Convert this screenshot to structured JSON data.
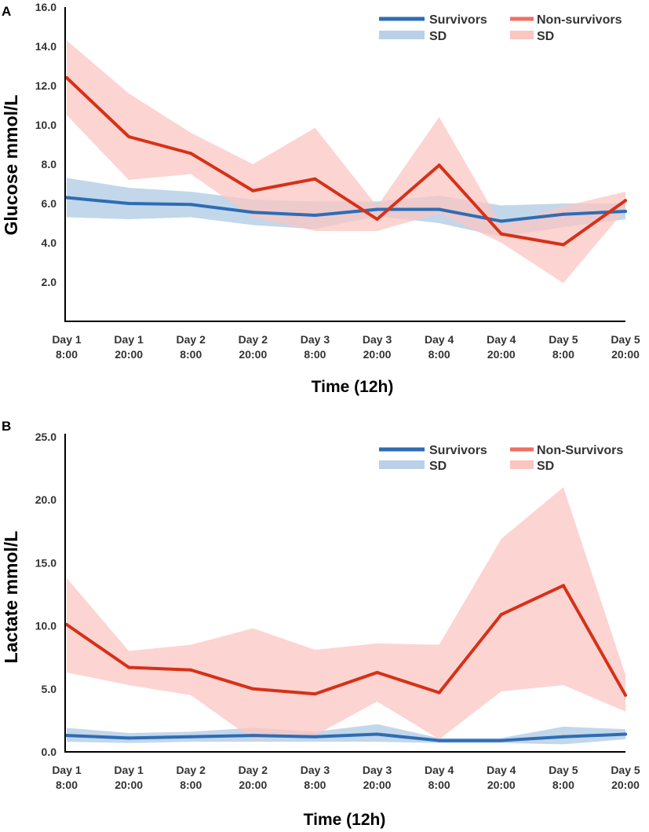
{
  "colors": {
    "survivors": "#2E6DB4",
    "survivors_band": "#B9D0E8",
    "nonsurvivors": "#D63118",
    "nonsurvivors_band": "#FBC5C2",
    "nonsurvivors_legend_line": "#EE6F63"
  },
  "chart_data": [
    {
      "panel": "A",
      "type": "line",
      "title": "",
      "xlabel": "Time (12h)",
      "ylabel": "Glucose mmol/L",
      "ylim": [
        0,
        16
      ],
      "yticks": [
        "2.0",
        "4.0",
        "6.0",
        "8.0",
        "10.0",
        "12.0",
        "14.0",
        "16.0"
      ],
      "categories": [
        [
          "Day 1",
          "8:00"
        ],
        [
          "Day 1",
          "20:00"
        ],
        [
          "Day 2",
          "8:00"
        ],
        [
          "Day 2",
          "20:00"
        ],
        [
          "Day 3",
          "8:00"
        ],
        [
          "Day 3",
          "20:00"
        ],
        [
          "Day 4",
          "8:00"
        ],
        [
          "Day 4",
          "20:00"
        ],
        [
          "Day 5",
          "8:00"
        ],
        [
          "Day 5",
          "20:00"
        ]
      ],
      "legend": {
        "survivors": "Survivors",
        "survivors_sd": "SD",
        "nonsurvivors": "Non-survivors",
        "nonsurvivors_sd": "SD",
        "position": "top-right"
      },
      "series": [
        {
          "name": "Survivors",
          "values": [
            6.3,
            6.0,
            5.95,
            5.55,
            5.4,
            5.7,
            5.7,
            5.1,
            5.45,
            5.6
          ],
          "lower": [
            5.3,
            5.2,
            5.3,
            4.9,
            4.7,
            5.35,
            5.0,
            4.3,
            4.8,
            5.2
          ],
          "upper": [
            7.3,
            6.8,
            6.6,
            6.2,
            6.1,
            6.1,
            6.4,
            5.9,
            6.0,
            6.0
          ]
        },
        {
          "name": "Non-survivors",
          "values": [
            12.4,
            9.4,
            8.55,
            6.65,
            7.25,
            5.2,
            7.95,
            4.45,
            3.9,
            6.15
          ],
          "lower": [
            10.5,
            7.2,
            7.5,
            5.3,
            4.6,
            4.6,
            5.5,
            4.0,
            1.95,
            5.7
          ],
          "upper": [
            14.3,
            11.6,
            9.6,
            8.0,
            9.85,
            5.85,
            10.4,
            4.9,
            5.85,
            6.6
          ]
        }
      ]
    },
    {
      "panel": "B",
      "type": "line",
      "title": "",
      "xlabel": "Time (12h)",
      "ylabel": "Lactate mmol/L",
      "ylim": [
        0,
        25
      ],
      "yticks": [
        "0.0",
        "5.0",
        "10.0",
        "15.0",
        "20.0",
        "25.0"
      ],
      "categories": [
        [
          "Day 1",
          "8:00"
        ],
        [
          "Day 1",
          "20:00"
        ],
        [
          "Day 2",
          "8:00"
        ],
        [
          "Day 2",
          "20:00"
        ],
        [
          "Day 3",
          "8:00"
        ],
        [
          "Day 3",
          "20:00"
        ],
        [
          "Day 4",
          "8:00"
        ],
        [
          "Day 4",
          "20:00"
        ],
        [
          "Day 5",
          "8:00"
        ],
        [
          "Day 5",
          "20:00"
        ]
      ],
      "legend": {
        "survivors": "Survivors",
        "survivors_sd": "SD",
        "nonsurvivors": "Non-Survivors",
        "nonsurvivors_sd": "SD",
        "position": "top-right"
      },
      "series": [
        {
          "name": "Survivors",
          "values": [
            1.3,
            1.1,
            1.2,
            1.3,
            1.2,
            1.4,
            0.9,
            0.9,
            1.2,
            1.4
          ],
          "lower": [
            0.8,
            0.7,
            0.8,
            0.8,
            0.8,
            0.8,
            0.7,
            0.7,
            0.6,
            1.0
          ],
          "upper": [
            1.9,
            1.5,
            1.6,
            1.9,
            1.6,
            2.2,
            1.1,
            1.1,
            2.0,
            1.8
          ]
        },
        {
          "name": "Non-Survivors",
          "values": [
            10.1,
            6.7,
            6.5,
            5.0,
            4.6,
            6.3,
            4.7,
            10.9,
            13.2,
            4.5
          ],
          "lower": [
            6.3,
            5.3,
            4.5,
            1.0,
            1.3,
            4.0,
            1.0,
            4.8,
            5.3,
            3.2
          ],
          "upper": [
            13.8,
            8.0,
            8.5,
            9.8,
            8.1,
            8.6,
            8.5,
            16.9,
            21.0,
            6.1
          ]
        }
      ]
    }
  ]
}
